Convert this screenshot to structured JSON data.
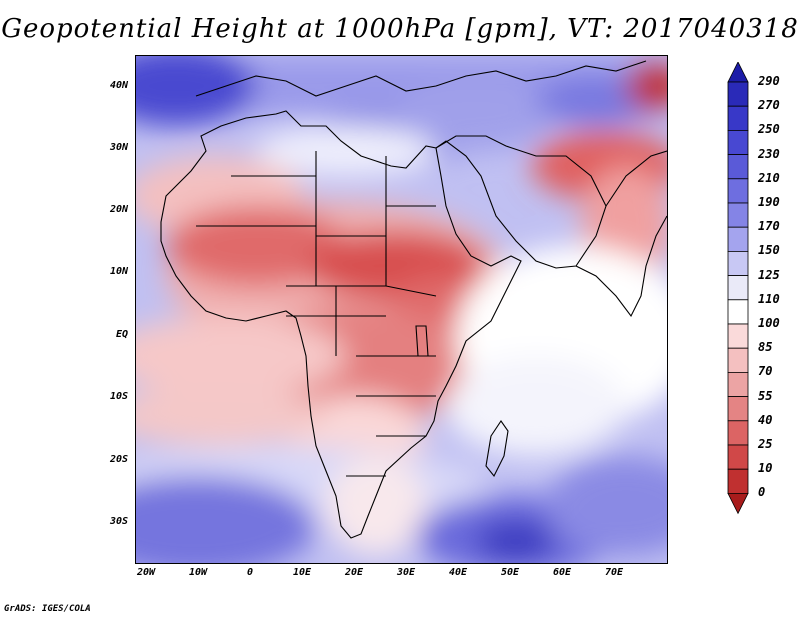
{
  "title": "Geopotential Height at 1000hPa [gpm], VT: 2017040318",
  "footer": "GrADS: IGES/COLA",
  "map": {
    "lat_labels": [
      "40N",
      "30N",
      "20N",
      "10N",
      "EQ",
      "10S",
      "20S",
      "30S"
    ],
    "lon_labels": [
      "20W",
      "10W",
      "0",
      "10E",
      "20E",
      "30E",
      "40E",
      "50E",
      "60E",
      "70E"
    ]
  },
  "colorbar": {
    "levels": [
      "290",
      "270",
      "250",
      "230",
      "210",
      "190",
      "170",
      "150",
      "125",
      "110",
      "100",
      "85",
      "70",
      "55",
      "40",
      "25",
      "10",
      "0"
    ],
    "colors": [
      "#1c1ca8",
      "#2a2ab8",
      "#3838c8",
      "#4848d2",
      "#5a5ad8",
      "#6e6ee0",
      "#8484e6",
      "#a4a4ee",
      "#c8c8f4",
      "#eaeaf8",
      "#ffffff",
      "#fadada",
      "#f4c0c0",
      "#eca4a4",
      "#e48484",
      "#dc6464",
      "#d04848",
      "#c03030",
      "#a81c1c"
    ]
  },
  "colors": {
    "low": "#c03030",
    "high": "#2a2ab8",
    "neutral": "#ffffff"
  }
}
